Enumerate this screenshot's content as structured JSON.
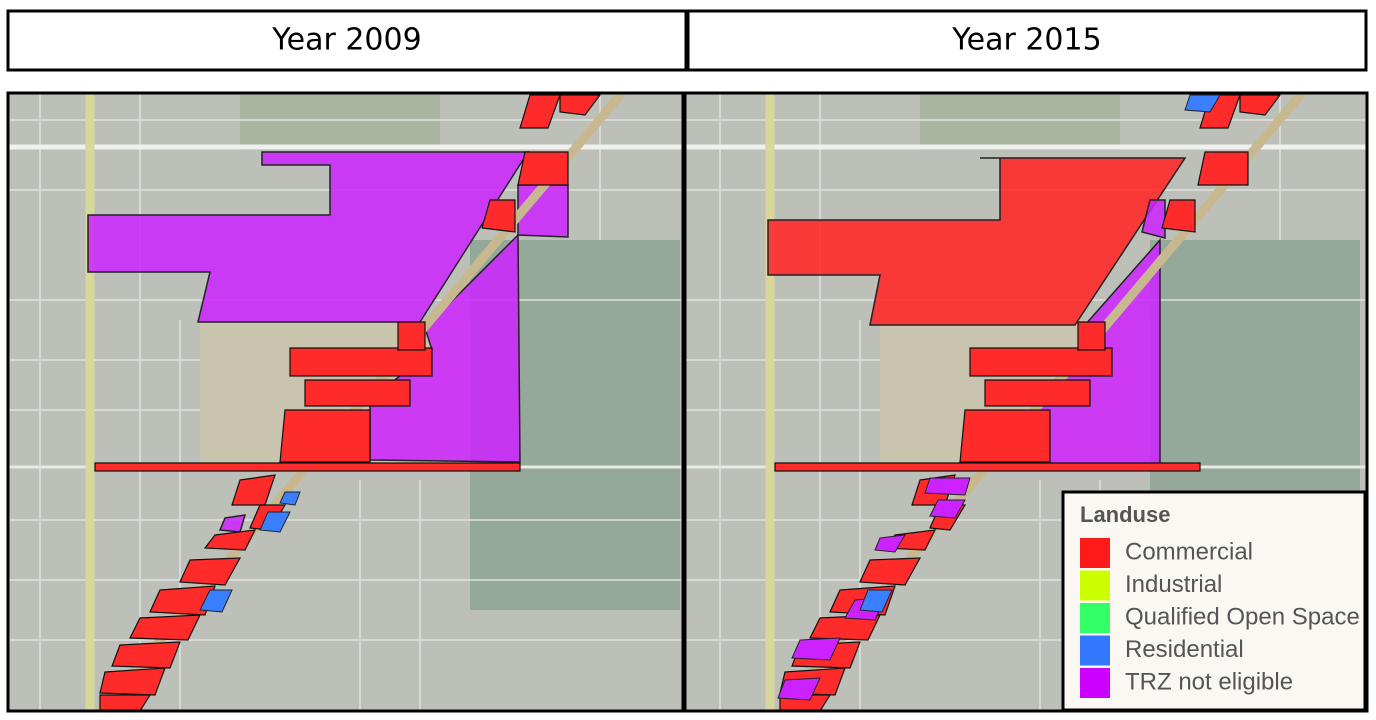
{
  "headers": [
    "Year 2009",
    "Year 2015"
  ],
  "legend": {
    "title": "Landuse",
    "items": [
      {
        "name": "Commercial",
        "color": "#ff1a1a"
      },
      {
        "name": "Industrial",
        "color": "#ccff00"
      },
      {
        "name": "Qualified Open Space",
        "color": "#33ff66"
      },
      {
        "name": "Residential",
        "color": "#3377ff"
      },
      {
        "name": "TRZ not eligible",
        "color": "#cc00ff"
      }
    ]
  }
}
